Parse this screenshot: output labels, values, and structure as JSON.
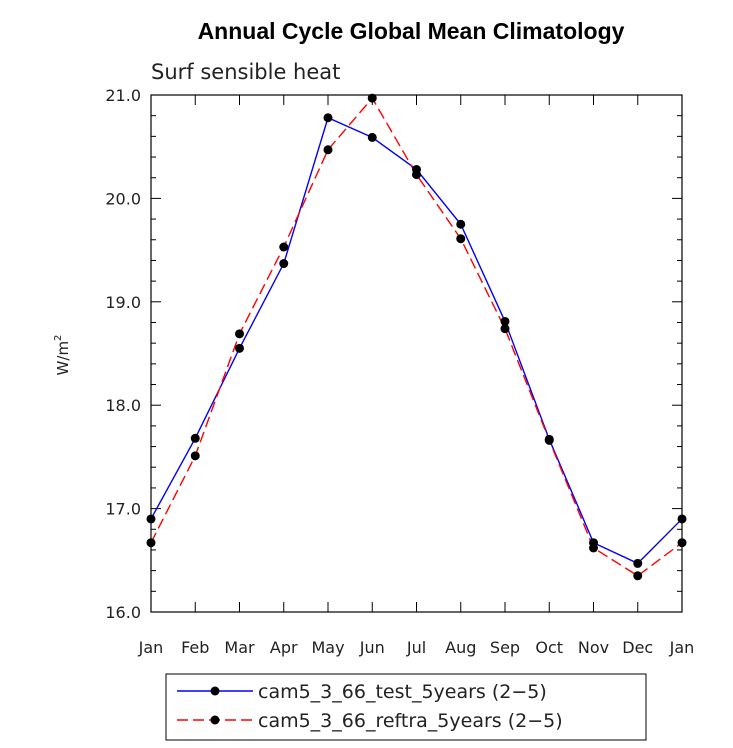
{
  "chart_data": {
    "type": "line",
    "title": "Annual Cycle Global Mean Climatology",
    "subtitle": "Surf sensible heat",
    "xlabel": "",
    "ylabel": "W/m",
    "ylabel_superscript": "2",
    "ylim": [
      16.0,
      21.0
    ],
    "yticks": [
      "16.0",
      "17.0",
      "18.0",
      "19.0",
      "20.0",
      "21.0"
    ],
    "categories": [
      "Jan",
      "Feb",
      "Mar",
      "Apr",
      "May",
      "Jun",
      "Jul",
      "Aug",
      "Sep",
      "Oct",
      "Nov",
      "Dec",
      "Jan"
    ],
    "series": [
      {
        "name": "cam5_3_66_test_5years (2−5)",
        "color": "#0000ff",
        "dash": "solid",
        "values": [
          16.9,
          17.68,
          18.55,
          19.37,
          20.78,
          20.59,
          20.28,
          19.75,
          18.81,
          17.67,
          16.67,
          16.47,
          16.9
        ]
      },
      {
        "name": "cam5_3_66_reftra_5years (2−5)",
        "color": "#ff0000",
        "dash": "dashed",
        "values": [
          16.67,
          17.51,
          18.69,
          19.53,
          20.47,
          20.97,
          20.23,
          19.61,
          18.74,
          17.66,
          16.62,
          16.35,
          16.67
        ]
      }
    ],
    "legend_position": "bottom"
  }
}
